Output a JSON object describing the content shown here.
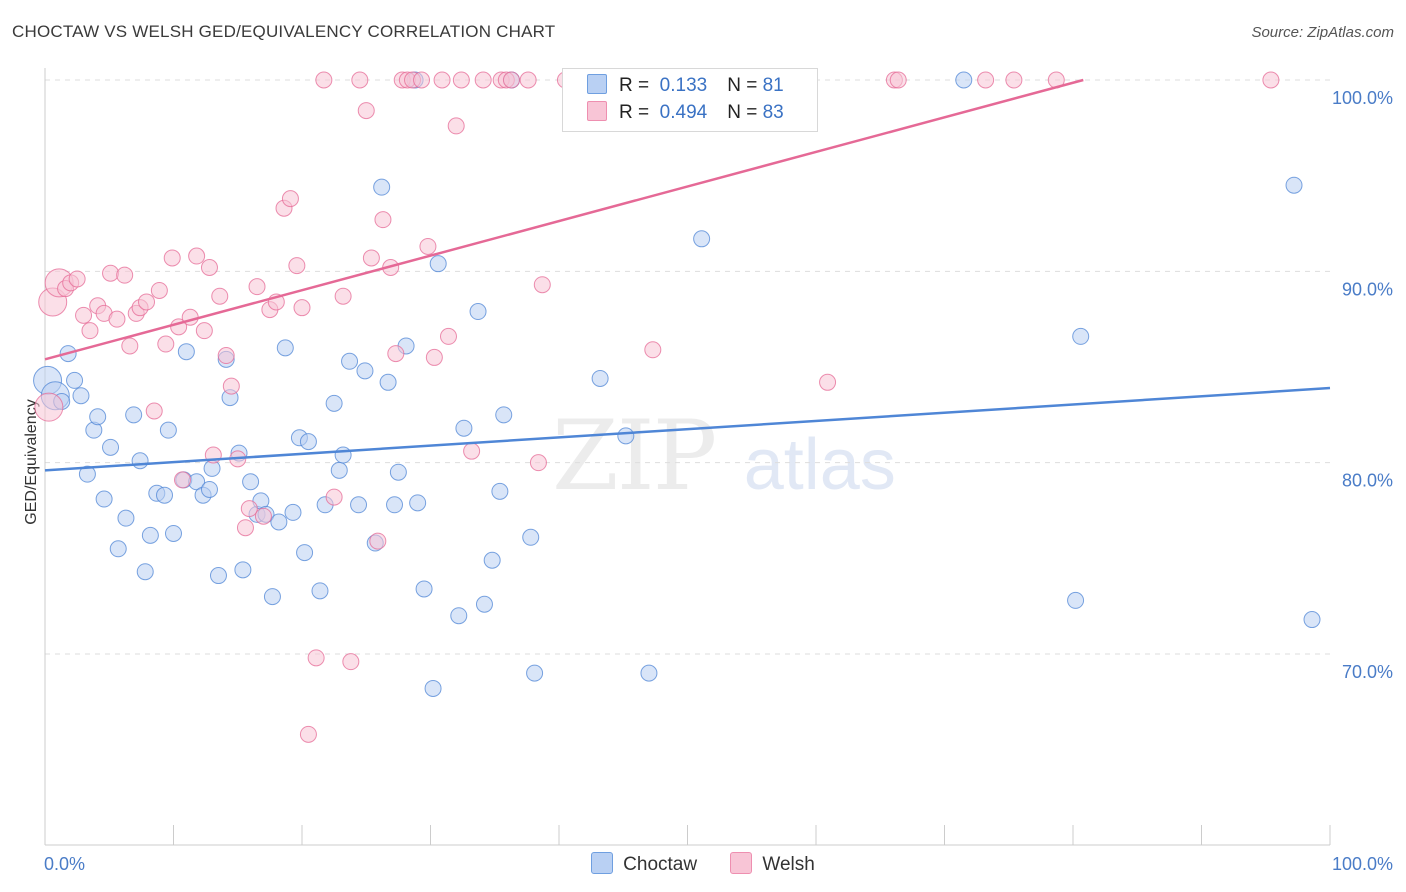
{
  "title": "CHOCTAW VS WELSH GED/EQUIVALENCY CORRELATION CHART",
  "source": "Source: ZipAtlas.com",
  "watermark": {
    "zip": "ZIP",
    "atlas": "atlas"
  },
  "legend": {
    "rows": [
      {
        "r_label": "R =",
        "r_value": "0.133",
        "n_label": "N =",
        "n_value": "81",
        "color": "#6f9fe0",
        "fill": "#b9d0f3"
      },
      {
        "r_label": "R =",
        "r_value": "0.494",
        "n_label": "N =",
        "n_value": "83",
        "color": "#ee8fb0",
        "fill": "#f8c5d6"
      }
    ]
  },
  "bottom_legend": [
    {
      "label": "Choctaw",
      "color": "#6f9fe0",
      "fill": "#b9d0f3"
    },
    {
      "label": "Welsh",
      "color": "#ee8fb0",
      "fill": "#f8c5d6"
    }
  ],
  "chart_data": {
    "type": "scatter",
    "title": "CHOCTAW VS WELSH GED/EQUIVALENCY CORRELATION CHART",
    "xlabel": "",
    "ylabel": "GED/Equivalency",
    "xlim": [
      0,
      100
    ],
    "ylim": [
      60,
      100
    ],
    "x_tick_labels": [
      "0.0%",
      "100.0%"
    ],
    "y_ticks": [
      70,
      80,
      90,
      100
    ],
    "y_tick_labels": [
      "70.0%",
      "80.0%",
      "90.0%",
      "100.0%"
    ],
    "grid": true,
    "legend_position": "top-center",
    "series": [
      {
        "name": "Choctaw",
        "color": "#4f86d6",
        "fill": "#b9d0f3",
        "trend": {
          "x": [
            0,
            100
          ],
          "y": [
            79.6,
            83.9
          ]
        },
        "points": [
          [
            0.2,
            84.3
          ],
          [
            0.8,
            83.5
          ],
          [
            1.3,
            83.2
          ],
          [
            1.8,
            85.7
          ],
          [
            2.3,
            84.3
          ],
          [
            2.8,
            83.5
          ],
          [
            3.3,
            79.4
          ],
          [
            3.8,
            81.7
          ],
          [
            4.1,
            82.4
          ],
          [
            4.6,
            78.1
          ],
          [
            5.1,
            80.8
          ],
          [
            5.7,
            75.5
          ],
          [
            6.3,
            77.1
          ],
          [
            6.9,
            82.5
          ],
          [
            7.4,
            80.1
          ],
          [
            7.8,
            74.3
          ],
          [
            8.2,
            76.2
          ],
          [
            8.7,
            78.4
          ],
          [
            9.3,
            78.3
          ],
          [
            9.6,
            81.7
          ],
          [
            10.0,
            76.3
          ],
          [
            10.8,
            79.1
          ],
          [
            11.0,
            85.8
          ],
          [
            11.8,
            79.0
          ],
          [
            12.3,
            78.3
          ],
          [
            12.8,
            78.6
          ],
          [
            13.0,
            79.7
          ],
          [
            13.5,
            74.1
          ],
          [
            14.1,
            85.4
          ],
          [
            14.4,
            83.4
          ],
          [
            15.1,
            80.5
          ],
          [
            15.4,
            74.4
          ],
          [
            16.0,
            79.0
          ],
          [
            16.5,
            77.3
          ],
          [
            16.8,
            78.0
          ],
          [
            17.2,
            77.3
          ],
          [
            17.7,
            73.0
          ],
          [
            18.2,
            76.9
          ],
          [
            18.7,
            86.0
          ],
          [
            19.3,
            77.4
          ],
          [
            19.8,
            81.3
          ],
          [
            20.2,
            75.3
          ],
          [
            20.5,
            81.1
          ],
          [
            21.4,
            73.3
          ],
          [
            21.8,
            77.8
          ],
          [
            22.5,
            83.1
          ],
          [
            22.9,
            79.6
          ],
          [
            23.2,
            80.4
          ],
          [
            23.7,
            85.3
          ],
          [
            24.4,
            77.8
          ],
          [
            24.9,
            84.8
          ],
          [
            25.7,
            75.8
          ],
          [
            26.2,
            94.4
          ],
          [
            26.7,
            84.2
          ],
          [
            27.2,
            77.8
          ],
          [
            27.5,
            79.5
          ],
          [
            28.1,
            86.1
          ],
          [
            28.8,
            100.0
          ],
          [
            29.0,
            77.9
          ],
          [
            29.5,
            73.4
          ],
          [
            30.2,
            68.2
          ],
          [
            30.6,
            90.4
          ],
          [
            32.2,
            72.0
          ],
          [
            32.6,
            81.8
          ],
          [
            33.7,
            87.9
          ],
          [
            34.2,
            72.6
          ],
          [
            34.8,
            74.9
          ],
          [
            35.4,
            78.5
          ],
          [
            35.7,
            82.5
          ],
          [
            36.3,
            100.0
          ],
          [
            37.8,
            76.1
          ],
          [
            38.1,
            69.0
          ],
          [
            43.2,
            84.4
          ],
          [
            45.2,
            81.4
          ],
          [
            47.0,
            69.0
          ],
          [
            51.1,
            91.7
          ],
          [
            71.5,
            100.0
          ],
          [
            80.2,
            72.8
          ],
          [
            80.6,
            86.6
          ],
          [
            97.2,
            94.5
          ],
          [
            98.6,
            71.8
          ]
        ]
      },
      {
        "name": "Welsh",
        "color": "#e56996",
        "fill": "#f8c5d6",
        "trend": {
          "x": [
            0,
            80.8
          ],
          "y": [
            85.4,
            100.0
          ]
        },
        "points": [
          [
            0.3,
            82.9
          ],
          [
            0.6,
            88.4
          ],
          [
            1.1,
            89.4
          ],
          [
            1.6,
            89.1
          ],
          [
            2.0,
            89.4
          ],
          [
            2.5,
            89.6
          ],
          [
            3.0,
            87.7
          ],
          [
            3.5,
            86.9
          ],
          [
            4.1,
            88.2
          ],
          [
            4.6,
            87.8
          ],
          [
            5.1,
            89.9
          ],
          [
            5.6,
            87.5
          ],
          [
            6.2,
            89.8
          ],
          [
            6.6,
            86.1
          ],
          [
            7.1,
            87.8
          ],
          [
            7.4,
            88.1
          ],
          [
            7.9,
            88.4
          ],
          [
            8.5,
            82.7
          ],
          [
            8.9,
            89.0
          ],
          [
            9.4,
            86.2
          ],
          [
            9.9,
            90.7
          ],
          [
            10.4,
            87.1
          ],
          [
            10.7,
            79.1
          ],
          [
            11.3,
            87.6
          ],
          [
            11.8,
            90.8
          ],
          [
            12.4,
            86.9
          ],
          [
            12.8,
            90.2
          ],
          [
            13.1,
            80.4
          ],
          [
            13.6,
            88.7
          ],
          [
            14.1,
            85.6
          ],
          [
            14.5,
            84.0
          ],
          [
            15.0,
            80.2
          ],
          [
            15.6,
            76.6
          ],
          [
            15.9,
            77.6
          ],
          [
            16.5,
            89.2
          ],
          [
            17.0,
            77.2
          ],
          [
            17.5,
            88.0
          ],
          [
            18.0,
            88.4
          ],
          [
            18.6,
            93.3
          ],
          [
            19.1,
            93.8
          ],
          [
            19.6,
            90.3
          ],
          [
            20.0,
            88.1
          ],
          [
            20.5,
            65.8
          ],
          [
            21.1,
            69.8
          ],
          [
            21.7,
            100.0
          ],
          [
            22.5,
            78.2
          ],
          [
            23.2,
            88.7
          ],
          [
            23.8,
            69.6
          ],
          [
            24.5,
            100.0
          ],
          [
            25.0,
            98.4
          ],
          [
            25.4,
            90.7
          ],
          [
            25.9,
            75.9
          ],
          [
            26.3,
            92.7
          ],
          [
            26.9,
            90.2
          ],
          [
            27.3,
            85.7
          ],
          [
            27.8,
            100.0
          ],
          [
            28.2,
            100.0
          ],
          [
            28.6,
            100.0
          ],
          [
            29.3,
            100.0
          ],
          [
            29.8,
            91.3
          ],
          [
            30.3,
            85.5
          ],
          [
            30.9,
            100.0
          ],
          [
            31.4,
            86.6
          ],
          [
            32.0,
            97.6
          ],
          [
            32.4,
            100.0
          ],
          [
            33.2,
            80.6
          ],
          [
            34.1,
            100.0
          ],
          [
            35.5,
            100.0
          ],
          [
            35.9,
            100.0
          ],
          [
            36.3,
            100.0
          ],
          [
            37.6,
            100.0
          ],
          [
            38.4,
            80.0
          ],
          [
            38.7,
            89.3
          ],
          [
            40.5,
            100.0
          ],
          [
            41.0,
            100.0
          ],
          [
            47.3,
            85.9
          ],
          [
            60.9,
            84.2
          ],
          [
            66.1,
            100.0
          ],
          [
            66.4,
            100.0
          ],
          [
            73.2,
            100.0
          ],
          [
            75.4,
            100.0
          ],
          [
            78.7,
            100.0
          ],
          [
            95.4,
            100.0
          ]
        ]
      }
    ]
  }
}
